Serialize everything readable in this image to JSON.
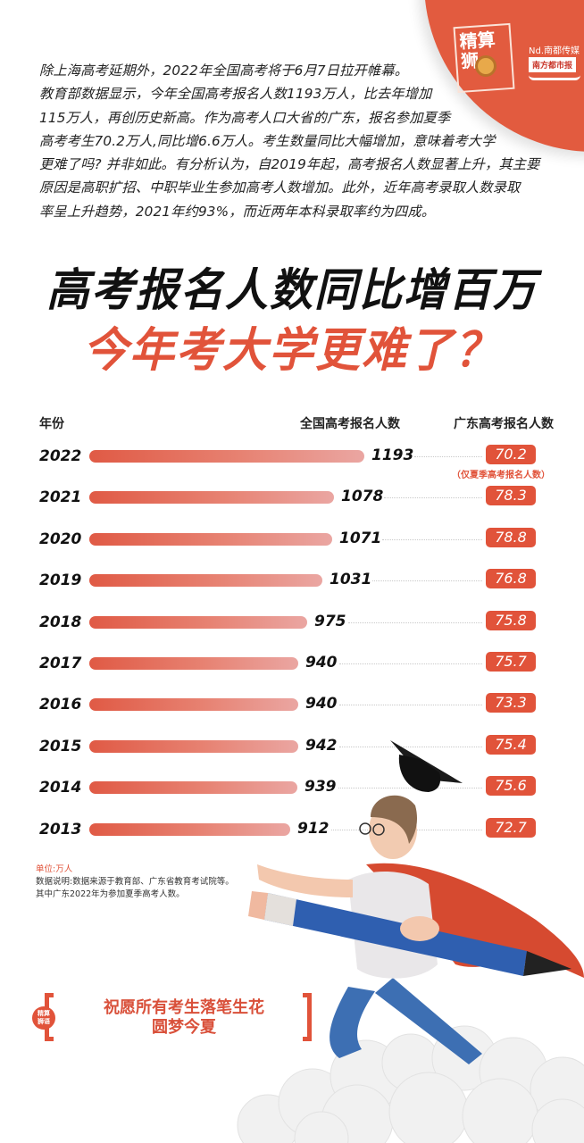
{
  "branding": {
    "stamp_line1": "精算",
    "stamp_line2": "狮",
    "media_group": "Nd.南都传媒",
    "newspaper": "南方都市报",
    "icon": "lion-mascot-icon"
  },
  "intro": {
    "lines": [
      "除上海高考延期外，2022年全国高考将于6月7日拉开帷幕。",
      "教育部数据显示，今年全国高考报名人数1193万人，比去年增加",
      "115万人，再创历史新高。作为高考人口大省的广东，报名参加夏季",
      "高考考生70.2万人,同比增6.6万人。考生数量同比大幅增加，意味着考大学",
      "更难了吗? 并非如此。有分析认为，自2019年起，高考报名人数显著上升，其主要",
      "原因是高职扩招、中职毕业生参加高考人数增加。此外，近年高考录取人数录取",
      "率呈上升趋势，2021年约93%，而近两年本科录取率约为四成。"
    ]
  },
  "headline": {
    "line1": "高考报名人数同比增百万",
    "line2": "今年考大学更难了？"
  },
  "table": {
    "col_year": "年份",
    "col_national": "全国高考报名人数",
    "col_guangdong": "广东高考报名人数",
    "badge_note_2022": "（仅夏季高考报名人数）",
    "rows": [
      {
        "year": "2022",
        "national": "1193",
        "guangdong": "70.2"
      },
      {
        "year": "2021",
        "national": "1078",
        "guangdong": "78.3"
      },
      {
        "year": "2020",
        "national": "1071",
        "guangdong": "78.8"
      },
      {
        "year": "2019",
        "national": "1031",
        "guangdong": "76.8"
      },
      {
        "year": "2018",
        "national": "975",
        "guangdong": "75.8"
      },
      {
        "year": "2017",
        "national": "940",
        "guangdong": "75.7"
      },
      {
        "year": "2016",
        "national": "940",
        "guangdong": "73.3"
      },
      {
        "year": "2015",
        "national": "942",
        "guangdong": "75.4"
      },
      {
        "year": "2014",
        "national": "939",
        "guangdong": "75.6"
      },
      {
        "year": "2013",
        "national": "912",
        "guangdong": "72.7"
      }
    ]
  },
  "notes": {
    "unit": "单位:万人",
    "source": "数据说明:数据来源于教育部、广东省教育考试院等。",
    "remark": "其中广东2022年为参加夏季高考人数。"
  },
  "slogan": {
    "seal_line1": "精算",
    "seal_line2": "狮语",
    "line1": "祝愿所有考生落笔生花",
    "line2": "圆梦今夏"
  },
  "colors": {
    "accent": "#e1533a",
    "bar_start": "#e05a45",
    "bar_end": "#eaa6a2",
    "text": "#111111"
  },
  "chart_data": {
    "type": "bar",
    "orientation": "horizontal",
    "title": "高考报名人数同比增百万 今年考大学更难了？",
    "xlabel": "全国高考报名人数",
    "ylabel": "年份",
    "unit": "万人",
    "categories": [
      "2022",
      "2021",
      "2020",
      "2019",
      "2018",
      "2017",
      "2016",
      "2015",
      "2014",
      "2013"
    ],
    "series": [
      {
        "name": "全国高考报名人数",
        "values": [
          1193,
          1078,
          1071,
          1031,
          975,
          940,
          940,
          942,
          939,
          912
        ]
      },
      {
        "name": "广东高考报名人数",
        "values": [
          70.2,
          78.3,
          78.8,
          76.8,
          75.8,
          75.7,
          73.3,
          75.4,
          75.6,
          72.7
        ],
        "display": "badge"
      }
    ],
    "annotations": [
      "2022年广东仅夏季高考报名人数"
    ],
    "grid": false
  }
}
